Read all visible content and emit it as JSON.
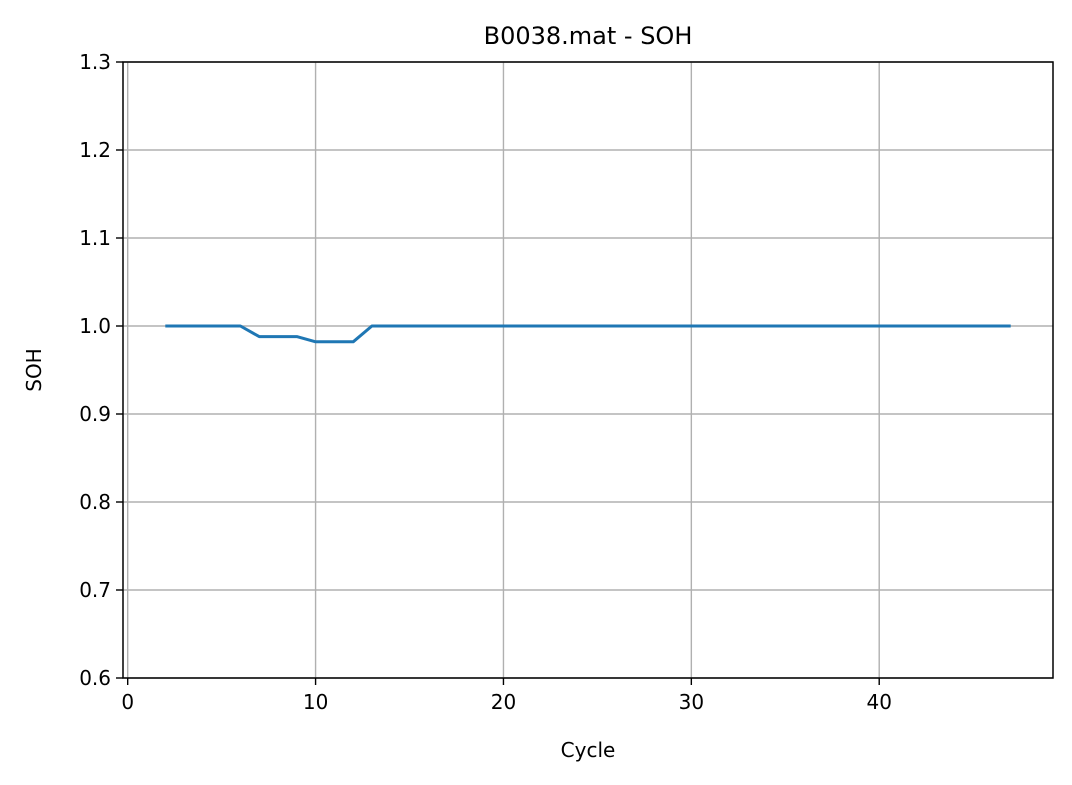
{
  "chart_data": {
    "type": "line",
    "title": "B0038.mat - SOH",
    "xlabel": "Cycle",
    "ylabel": "SOH",
    "xlim": [
      -0.25,
      49.25
    ],
    "ylim": [
      0.6,
      1.3
    ],
    "xticks": [
      0,
      10,
      20,
      30,
      40
    ],
    "xtick_labels": [
      "0",
      "10",
      "20",
      "30",
      "40"
    ],
    "yticks": [
      0.6,
      0.7,
      0.8,
      0.9,
      1.0,
      1.1,
      1.2,
      1.3
    ],
    "ytick_labels": [
      "0.6",
      "0.7",
      "0.8",
      "0.9",
      "1.0",
      "1.1",
      "1.2",
      "1.3"
    ],
    "grid": true,
    "colors": {
      "line": "#1f77b4",
      "grid": "#b0b0b0"
    },
    "series": [
      {
        "x": [
          2,
          3,
          4,
          5,
          6,
          7,
          8,
          9,
          10,
          11,
          12,
          13,
          14,
          15,
          16,
          17,
          18,
          19,
          20,
          21,
          22,
          23,
          24,
          25,
          26,
          27,
          28,
          29,
          30,
          31,
          32,
          33,
          34,
          35,
          36,
          37,
          38,
          39,
          40,
          41,
          42,
          43,
          44,
          45,
          46,
          47
        ],
        "y": [
          1.0,
          1.0,
          1.0,
          1.0,
          1.0,
          0.988,
          0.988,
          0.988,
          0.982,
          0.982,
          0.982,
          1.0,
          1.0,
          1.0,
          1.0,
          1.0,
          1.0,
          1.0,
          1.0,
          1.0,
          1.0,
          1.0,
          1.0,
          1.0,
          1.0,
          1.0,
          1.0,
          1.0,
          1.0,
          1.0,
          1.0,
          1.0,
          1.0,
          1.0,
          1.0,
          1.0,
          1.0,
          1.0,
          1.0,
          1.0,
          1.0,
          1.0,
          1.0,
          1.0,
          1.0,
          1.0
        ]
      }
    ]
  }
}
